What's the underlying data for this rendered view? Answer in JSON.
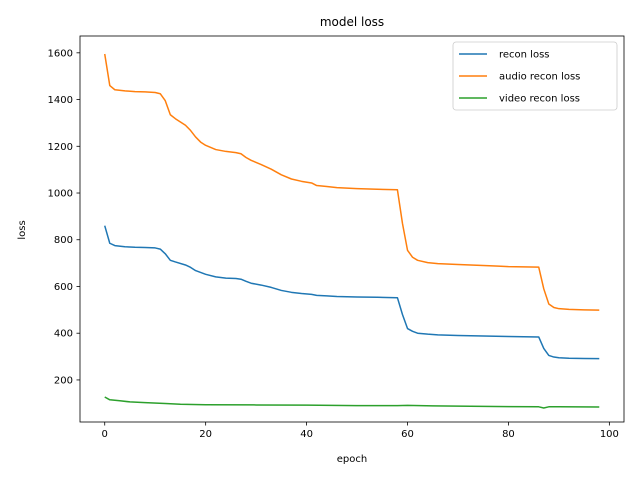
{
  "chart_data": {
    "type": "line",
    "title": "model loss",
    "xlabel": "epoch",
    "ylabel": "loss",
    "xlim": [
      -4.9,
      102.9
    ],
    "ylim": [
      20,
      1672
    ],
    "xticks": [
      0,
      20,
      40,
      60,
      80,
      100
    ],
    "yticks": [
      200,
      400,
      600,
      800,
      1000,
      1200,
      1400,
      1600
    ],
    "grid": false,
    "legend_position": "top-right",
    "series": [
      {
        "name": "recon loss",
        "color": "#1f77b4",
        "points": [
          [
            0,
            860
          ],
          [
            1,
            785
          ],
          [
            2,
            775
          ],
          [
            4,
            770
          ],
          [
            6,
            768
          ],
          [
            8,
            767
          ],
          [
            10,
            765
          ],
          [
            11,
            760
          ],
          [
            12,
            740
          ],
          [
            13,
            712
          ],
          [
            14,
            705
          ],
          [
            16,
            692
          ],
          [
            17,
            682
          ],
          [
            18,
            668
          ],
          [
            20,
            652
          ],
          [
            22,
            641
          ],
          [
            24,
            636
          ],
          [
            26,
            634
          ],
          [
            27,
            631
          ],
          [
            28,
            622
          ],
          [
            29,
            614
          ],
          [
            31,
            606
          ],
          [
            33,
            596
          ],
          [
            35,
            583
          ],
          [
            37,
            575
          ],
          [
            39,
            570
          ],
          [
            41,
            566
          ],
          [
            42,
            562
          ],
          [
            44,
            560
          ],
          [
            46,
            557
          ],
          [
            50,
            555
          ],
          [
            54,
            554
          ],
          [
            58,
            552
          ],
          [
            59,
            480
          ],
          [
            60,
            420
          ],
          [
            61,
            408
          ],
          [
            62,
            400
          ],
          [
            64,
            396
          ],
          [
            66,
            393
          ],
          [
            70,
            390
          ],
          [
            75,
            388
          ],
          [
            80,
            386
          ],
          [
            86,
            384
          ],
          [
            87,
            335
          ],
          [
            88,
            305
          ],
          [
            89,
            298
          ],
          [
            90,
            295
          ],
          [
            92,
            293
          ],
          [
            95,
            292
          ],
          [
            98,
            291
          ]
        ]
      },
      {
        "name": "audio recon loss",
        "color": "#ff7f0e",
        "points": [
          [
            0,
            1595
          ],
          [
            1,
            1460
          ],
          [
            2,
            1442
          ],
          [
            4,
            1437
          ],
          [
            6,
            1434
          ],
          [
            8,
            1433
          ],
          [
            10,
            1430
          ],
          [
            11,
            1425
          ],
          [
            12,
            1395
          ],
          [
            13,
            1335
          ],
          [
            14,
            1318
          ],
          [
            16,
            1290
          ],
          [
            17,
            1268
          ],
          [
            18,
            1240
          ],
          [
            19,
            1218
          ],
          [
            20,
            1204
          ],
          [
            22,
            1186
          ],
          [
            24,
            1178
          ],
          [
            26,
            1173
          ],
          [
            27,
            1168
          ],
          [
            28,
            1152
          ],
          [
            29,
            1140
          ],
          [
            31,
            1122
          ],
          [
            33,
            1102
          ],
          [
            35,
            1078
          ],
          [
            37,
            1060
          ],
          [
            39,
            1050
          ],
          [
            41,
            1043
          ],
          [
            42,
            1032
          ],
          [
            44,
            1028
          ],
          [
            46,
            1023
          ],
          [
            50,
            1019
          ],
          [
            54,
            1016
          ],
          [
            58,
            1014
          ],
          [
            59,
            870
          ],
          [
            60,
            755
          ],
          [
            61,
            725
          ],
          [
            62,
            712
          ],
          [
            64,
            702
          ],
          [
            66,
            698
          ],
          [
            70,
            694
          ],
          [
            75,
            690
          ],
          [
            78,
            687
          ],
          [
            80,
            685
          ],
          [
            86,
            683
          ],
          [
            87,
            590
          ],
          [
            88,
            525
          ],
          [
            89,
            510
          ],
          [
            90,
            505
          ],
          [
            92,
            502
          ],
          [
            95,
            500
          ],
          [
            98,
            499
          ]
        ]
      },
      {
        "name": "video recon loss",
        "color": "#2ca02c",
        "points": [
          [
            0,
            127
          ],
          [
            1,
            115
          ],
          [
            3,
            111
          ],
          [
            5,
            106
          ],
          [
            8,
            103
          ],
          [
            12,
            99
          ],
          [
            15,
            96
          ],
          [
            20,
            94
          ],
          [
            30,
            93
          ],
          [
            40,
            92
          ],
          [
            50,
            90
          ],
          [
            58,
            90
          ],
          [
            60,
            91
          ],
          [
            65,
            89
          ],
          [
            70,
            88
          ],
          [
            80,
            86
          ],
          [
            86,
            85
          ],
          [
            87,
            80
          ],
          [
            88,
            85
          ],
          [
            90,
            85
          ],
          [
            98,
            84
          ]
        ]
      }
    ]
  }
}
